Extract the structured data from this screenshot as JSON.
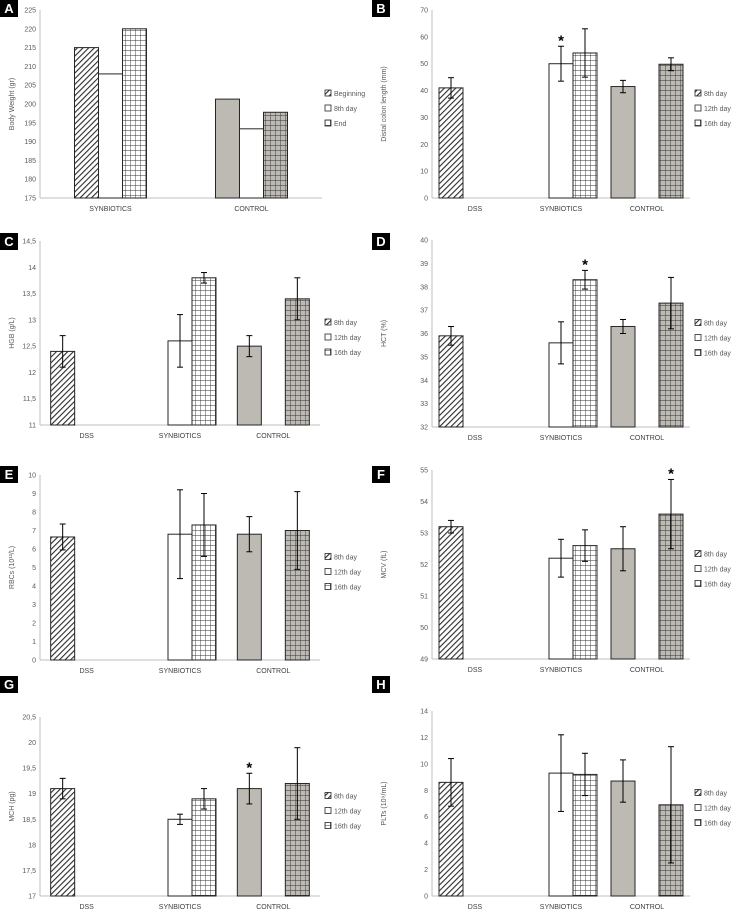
{
  "figure": {
    "title": ""
  },
  "chart_data": [
    {
      "panel": "A",
      "type": "bar",
      "categories": [
        "SYNBIOTICS",
        "CONTROL"
      ],
      "series": [
        {
          "name": "Beginning",
          "values": [
            215,
            201.3
          ],
          "pattern": "diag"
        },
        {
          "name": "8th day",
          "values": [
            208,
            193.4
          ],
          "pattern": "plain"
        },
        {
          "name": "End",
          "values": [
            220,
            197.8
          ],
          "pattern": "grid"
        }
      ],
      "errors": null,
      "stars": [],
      "ylabel": "Body Weight (gr)",
      "ylim": [
        175,
        225
      ],
      "yticks": [
        "175",
        "180",
        "185",
        "190",
        "195",
        "200",
        "205",
        "210",
        "215",
        "220",
        "225"
      ]
    },
    {
      "panel": "B",
      "type": "bar",
      "categories": [
        "DSS",
        "SYNBIOTICS",
        "CONTROL"
      ],
      "series": [
        {
          "name": "8th day",
          "values": [
            41,
            null,
            41.5
          ],
          "errors": [
            3.8,
            null,
            2.3
          ],
          "pattern": "diag"
        },
        {
          "name": "12th day",
          "values": [
            null,
            50,
            null
          ],
          "errors": [
            null,
            6.5,
            null
          ],
          "pattern": "plain"
        },
        {
          "name": "16th day",
          "values": [
            null,
            54,
            49.8
          ],
          "errors": [
            null,
            9,
            2.4
          ],
          "pattern": "grid"
        }
      ],
      "stars": [
        {
          "category": "SYNBIOTICS",
          "series": "12th day"
        }
      ],
      "ylabel": "Distal colon length (mm)",
      "ylim": [
        0,
        70
      ],
      "yticks": [
        "0",
        "10",
        "20",
        "30",
        "40",
        "50",
        "60",
        "70"
      ]
    },
    {
      "panel": "C",
      "type": "bar",
      "categories": [
        "DSS",
        "SYNBIOTICS",
        "CONTROL"
      ],
      "series": [
        {
          "name": "8th day",
          "values": [
            12.4,
            null,
            12.5
          ],
          "errors": [
            0.3,
            null,
            0.2
          ],
          "pattern": "diag"
        },
        {
          "name": "12th day",
          "values": [
            null,
            12.6,
            null
          ],
          "errors": [
            null,
            0.5,
            null
          ],
          "pattern": "plain"
        },
        {
          "name": "16th day",
          "values": [
            null,
            13.8,
            13.4
          ],
          "errors": [
            null,
            0.1,
            0.4
          ],
          "pattern": "grid"
        }
      ],
      "stars": [],
      "ylabel": "HGB (g/L)",
      "ylim": [
        11,
        14.5
      ],
      "yticks": [
        "11",
        "11,5",
        "12",
        "12,5",
        "13",
        "13,5",
        "14",
        "14,5"
      ]
    },
    {
      "panel": "D",
      "type": "bar",
      "categories": [
        "DSS",
        "SYNBIOTICS",
        "CONTROL"
      ],
      "series": [
        {
          "name": "8th day",
          "values": [
            35.9,
            null,
            36.3
          ],
          "errors": [
            0.4,
            null,
            0.3
          ],
          "pattern": "diag"
        },
        {
          "name": "12th day",
          "values": [
            null,
            35.6,
            null
          ],
          "errors": [
            null,
            0.9,
            null
          ],
          "pattern": "plain"
        },
        {
          "name": "16th day",
          "values": [
            null,
            38.3,
            37.3
          ],
          "errors": [
            null,
            0.4,
            1.1
          ],
          "pattern": "grid"
        }
      ],
      "stars": [
        {
          "category": "SYNBIOTICS",
          "series": "16th day"
        }
      ],
      "ylabel": "HCT (%)",
      "ylim": [
        32,
        40
      ],
      "yticks": [
        "32",
        "33",
        "34",
        "35",
        "36",
        "37",
        "38",
        "39",
        "40"
      ]
    },
    {
      "panel": "E",
      "type": "bar",
      "categories": [
        "DSS",
        "SYNBIOTICS",
        "CONTROL"
      ],
      "series": [
        {
          "name": "8th day",
          "values": [
            6.65,
            null,
            6.8
          ],
          "errors": [
            0.7,
            null,
            0.95
          ],
          "pattern": "diag"
        },
        {
          "name": "12th day",
          "values": [
            null,
            6.8,
            null
          ],
          "errors": [
            null,
            2.4,
            null
          ],
          "pattern": "plain"
        },
        {
          "name": "16th day",
          "values": [
            null,
            7.3,
            7.0
          ],
          "errors": [
            null,
            1.7,
            2.1
          ],
          "pattern": "grid"
        }
      ],
      "stars": [],
      "ylabel": "RBCs (10¹²/L)",
      "ylim": [
        0,
        10
      ],
      "yticks": [
        "0",
        "1",
        "2",
        "3",
        "4",
        "5",
        "6",
        "7",
        "8",
        "9",
        "10"
      ]
    },
    {
      "panel": "F",
      "type": "bar",
      "categories": [
        "DSS",
        "SYNBIOTICS",
        "CONTROL"
      ],
      "series": [
        {
          "name": "8th day",
          "values": [
            53.2,
            null,
            52.5
          ],
          "errors": [
            0.2,
            null,
            0.7
          ],
          "pattern": "diag"
        },
        {
          "name": "12th day",
          "values": [
            null,
            52.2,
            null
          ],
          "errors": [
            null,
            0.6,
            null
          ],
          "pattern": "plain"
        },
        {
          "name": "16th day",
          "values": [
            null,
            52.6,
            53.6
          ],
          "errors": [
            null,
            0.5,
            1.1
          ],
          "pattern": "grid"
        }
      ],
      "stars": [
        {
          "category": "CONTROL",
          "series": "16th day"
        }
      ],
      "ylabel": "MCV (fL)",
      "ylim": [
        49,
        55
      ],
      "yticks": [
        "49",
        "50",
        "51",
        "52",
        "53",
        "54",
        "55"
      ]
    },
    {
      "panel": "G",
      "type": "bar",
      "categories": [
        "DSS",
        "SYNBIOTICS",
        "CONTROL"
      ],
      "series": [
        {
          "name": "8th day",
          "values": [
            19.1,
            null,
            19.1
          ],
          "errors": [
            0.2,
            null,
            0.3
          ],
          "pattern": "diag"
        },
        {
          "name": "12th day",
          "values": [
            null,
            18.5,
            null
          ],
          "errors": [
            null,
            0.1,
            null
          ],
          "pattern": "plain"
        },
        {
          "name": "16th day",
          "values": [
            null,
            18.9,
            19.2
          ],
          "errors": [
            null,
            0.2,
            0.7
          ],
          "pattern": "grid"
        }
      ],
      "stars": [
        {
          "category": "CONTROL",
          "series": "8th day"
        }
      ],
      "ylabel": "MCH (pg)",
      "ylim": [
        17,
        20.5
      ],
      "yticks": [
        "17",
        "17,5",
        "18",
        "18,5",
        "19",
        "19,5",
        "20",
        "20,5"
      ]
    },
    {
      "panel": "H",
      "type": "bar",
      "categories": [
        "DSS",
        "SYNBIOTICS",
        "CONTROL"
      ],
      "series": [
        {
          "name": "8th day",
          "values": [
            8.6,
            null,
            8.7
          ],
          "errors": [
            1.8,
            null,
            1.6
          ],
          "pattern": "diag"
        },
        {
          "name": "12th day",
          "values": [
            null,
            9.3,
            null
          ],
          "errors": [
            null,
            2.9,
            null
          ],
          "pattern": "plain"
        },
        {
          "name": "16th day",
          "values": [
            null,
            9.2,
            6.9
          ],
          "errors": [
            null,
            1.6,
            4.4
          ],
          "pattern": "grid"
        }
      ],
      "stars": [],
      "ylabel": "PLTs (10⁹/mL)",
      "ylim": [
        0,
        14
      ],
      "yticks": [
        "0",
        "2",
        "4",
        "6",
        "8",
        "10",
        "12",
        "14"
      ]
    }
  ],
  "colors": {
    "bar_stroke": "#262626",
    "control_fill": "#bdbab4",
    "diag_stroke": "#2b2b2b",
    "grid_stroke": "#333333",
    "axis": "#bfbfbf",
    "label_bg": "#000000"
  }
}
